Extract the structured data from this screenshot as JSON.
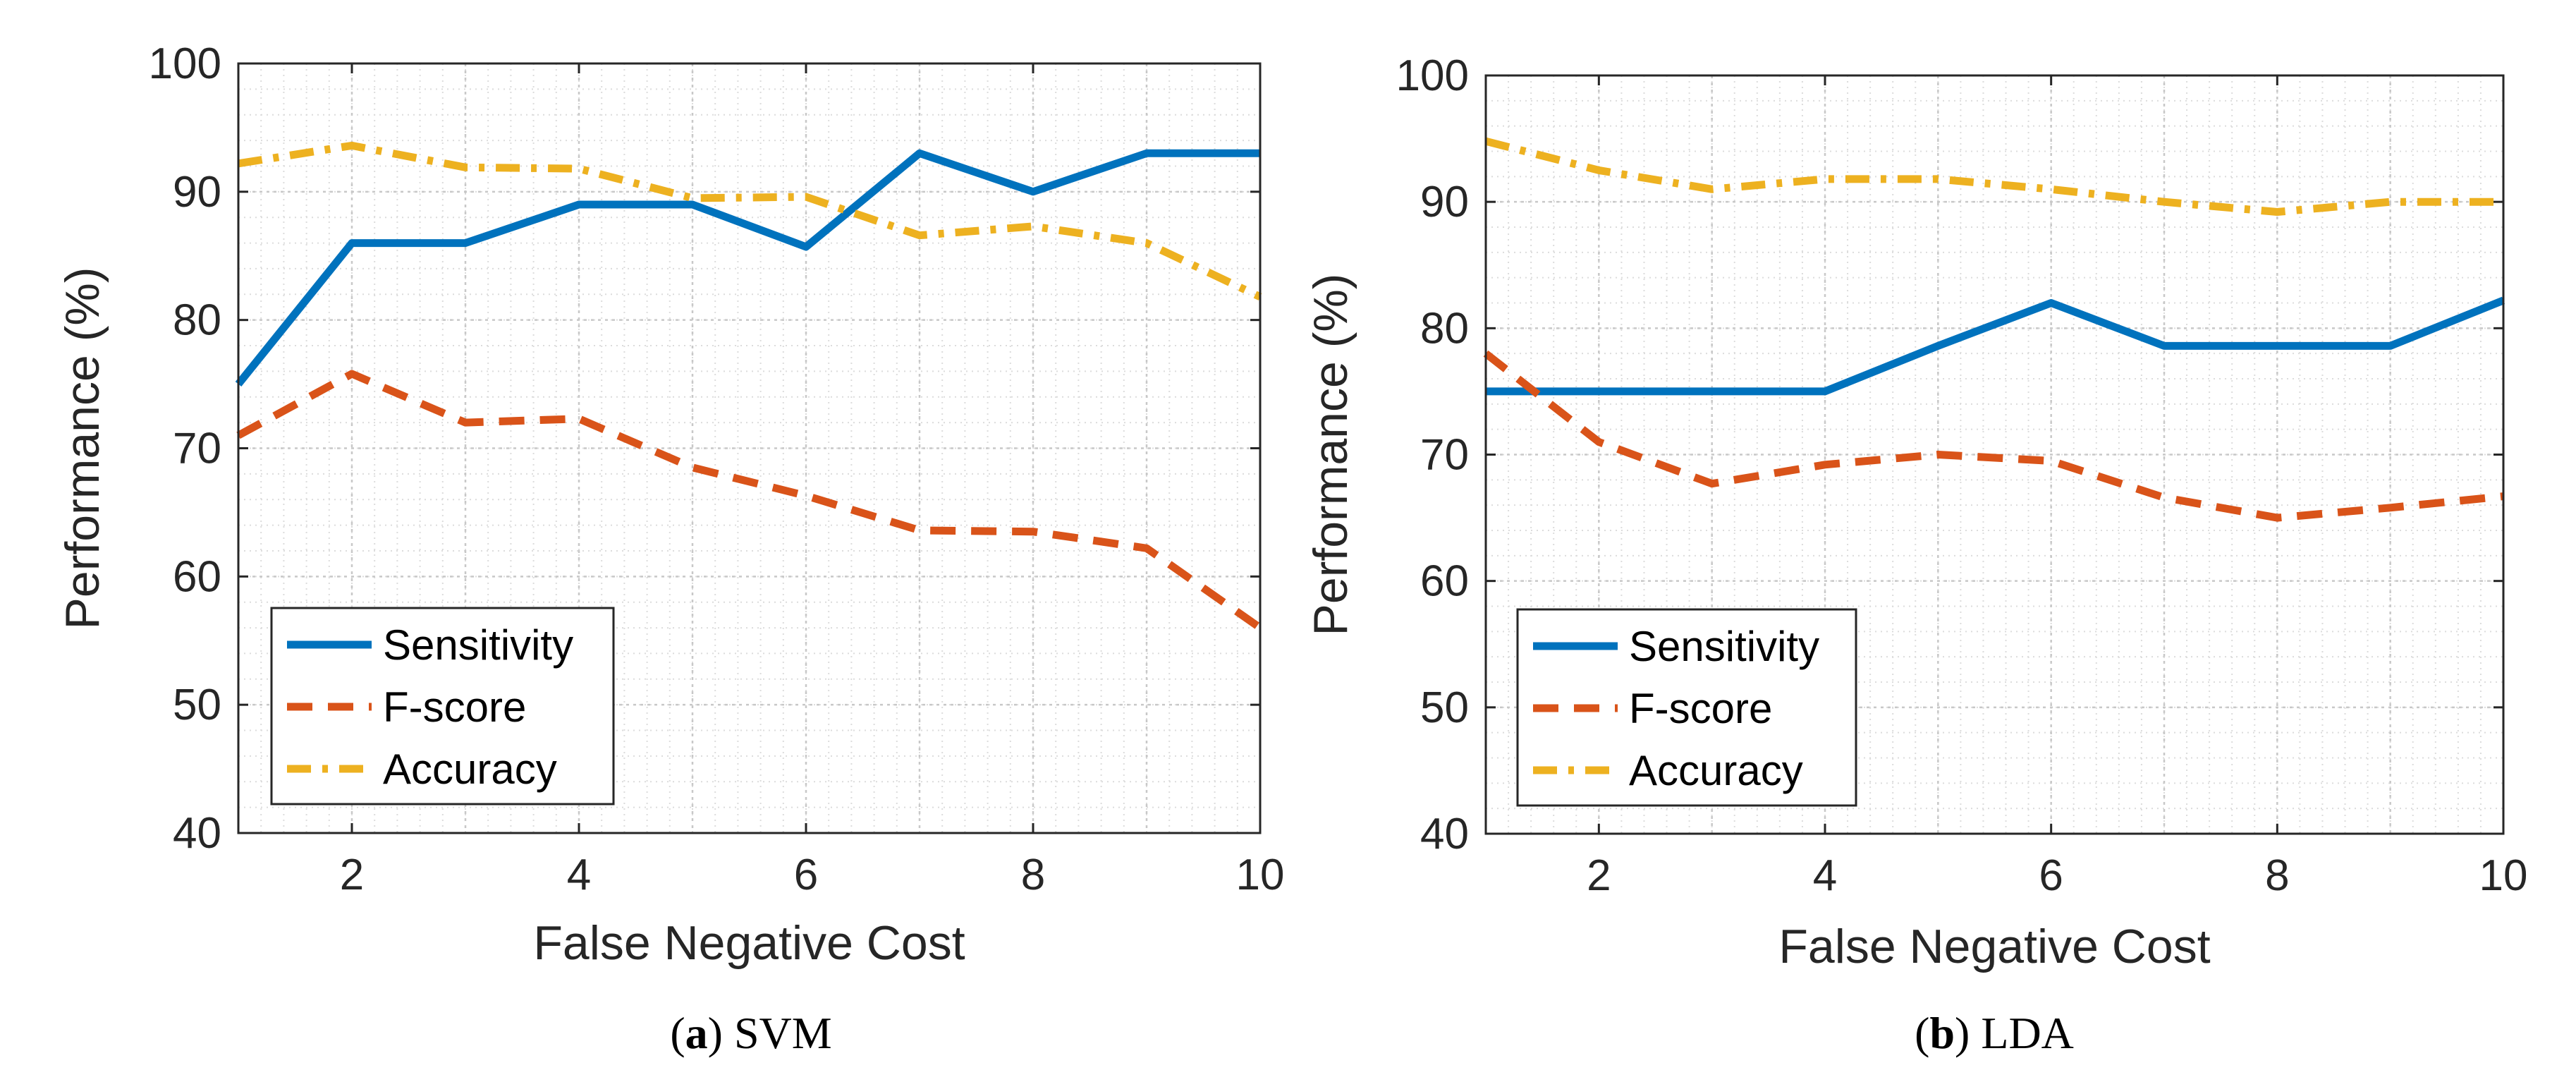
{
  "chart_data": [
    {
      "type": "line",
      "panel_letter": "a",
      "caption_name": "SVM",
      "x": [
        1,
        2,
        3,
        4,
        5,
        6,
        7,
        8,
        9,
        10
      ],
      "xlabel": "False Negative Cost",
      "ylabel": "Performance (%)",
      "xlim": [
        1,
        10
      ],
      "ylim": [
        40,
        100
      ],
      "xticks": [
        2,
        4,
        6,
        8,
        10
      ],
      "yticks": [
        40,
        50,
        60,
        70,
        80,
        90,
        100
      ],
      "grid": true,
      "minor_grid": true,
      "legend_position": "bottom-left",
      "series": [
        {
          "name": "Sensitivity",
          "style": "solid",
          "color": "#0072BD",
          "values": [
            75,
            86,
            86,
            89,
            89,
            85.7,
            93,
            90,
            93,
            93
          ]
        },
        {
          "name": "F-score",
          "style": "dashed",
          "color": "#D95319",
          "values": [
            71,
            75.8,
            72,
            72.3,
            68.5,
            66.3,
            63.6,
            63.5,
            62.2,
            56
          ]
        },
        {
          "name": "Accuracy",
          "style": "dashdot",
          "color": "#EDB120",
          "values": [
            92.2,
            93.6,
            91.9,
            91.8,
            89.5,
            89.6,
            86.6,
            87.3,
            86,
            81.8
          ]
        }
      ]
    },
    {
      "type": "line",
      "panel_letter": "b",
      "caption_name": "LDA",
      "x": [
        1,
        2,
        3,
        4,
        5,
        6,
        7,
        8,
        9,
        10
      ],
      "xlabel": "False Negative Cost",
      "ylabel": "Performance (%)",
      "xlim": [
        1,
        10
      ],
      "ylim": [
        40,
        100
      ],
      "xticks": [
        2,
        4,
        6,
        8,
        10
      ],
      "yticks": [
        40,
        50,
        60,
        70,
        80,
        90,
        100
      ],
      "grid": true,
      "minor_grid": true,
      "legend_position": "bottom-left",
      "series": [
        {
          "name": "Sensitivity",
          "style": "solid",
          "color": "#0072BD",
          "values": [
            75,
            75,
            75,
            75,
            78.6,
            82,
            78.6,
            78.6,
            78.6,
            82.2
          ]
        },
        {
          "name": "F-score",
          "style": "dashed",
          "color": "#D95319",
          "values": [
            78,
            71,
            67.7,
            69.2,
            70,
            69.5,
            66.6,
            65,
            65.8,
            66.7
          ]
        },
        {
          "name": "Accuracy",
          "style": "dashdot",
          "color": "#EDB120",
          "values": [
            94.8,
            92.5,
            91,
            91.8,
            91.8,
            91,
            90,
            89.2,
            90,
            90
          ]
        }
      ]
    }
  ]
}
